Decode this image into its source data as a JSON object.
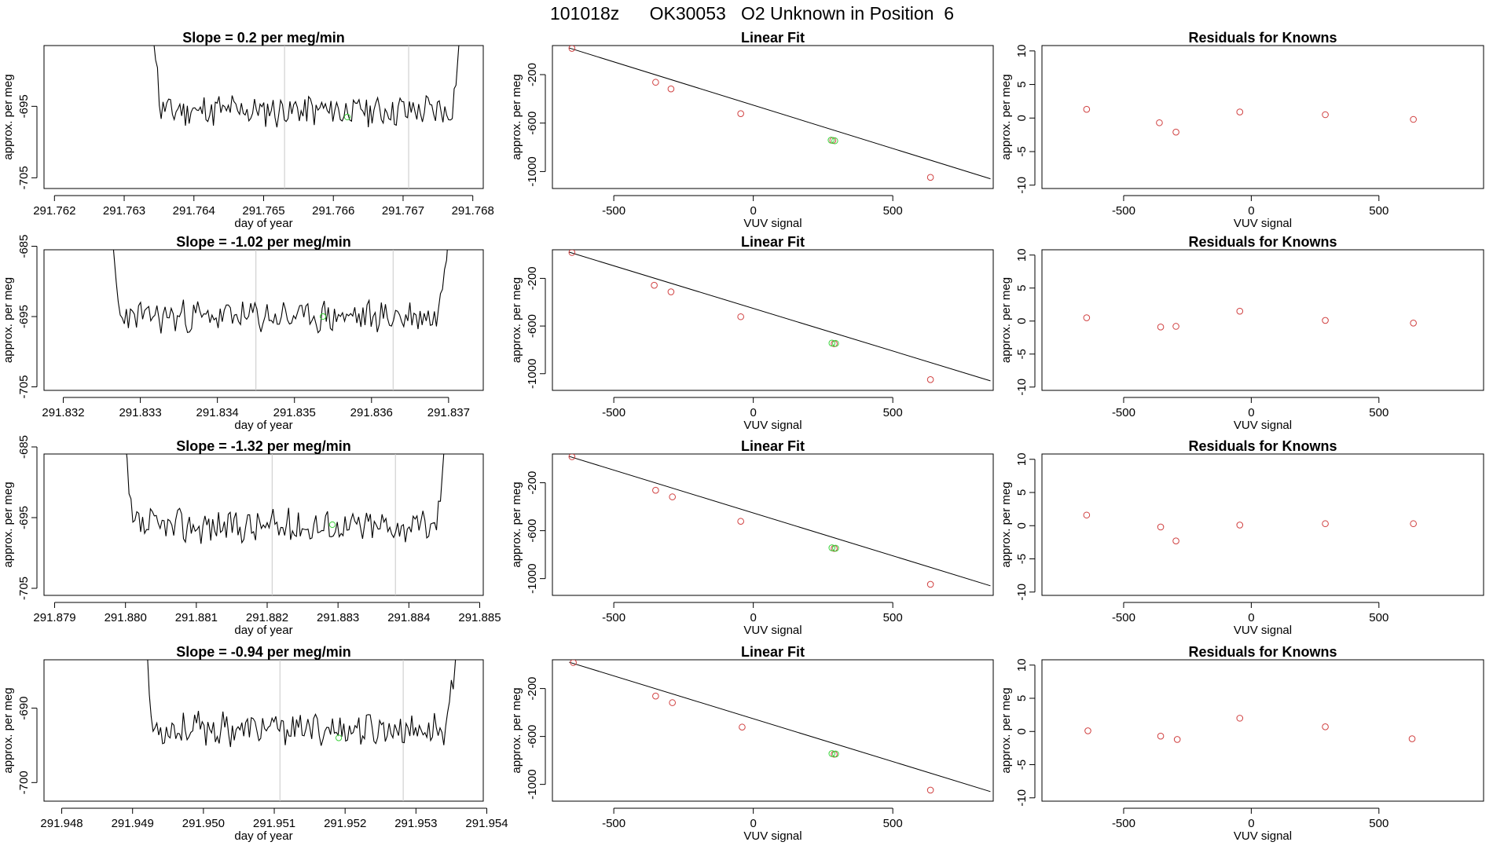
{
  "figure": {
    "title": "101018z      OK30053   O2 Unknown in Position  6",
    "colors": {
      "line": "#000000",
      "known_points": "#d04040",
      "unknown_points": "#3ad23a",
      "guide_lines": "#c8c8c8",
      "frame": "#000000"
    }
  },
  "chart_data": [
    {
      "type": "line",
      "id": "time-series-row-1",
      "title": "Slope =  0.2  per meg/min",
      "xlabel": "day of year",
      "ylabel": "approx. per meg",
      "x_range": [
        291.76185,
        291.76815
      ],
      "ylim": [
        -706.5,
        -686.5
      ],
      "x_ticks": [
        {
          "value": 291.762,
          "label": "291.762"
        },
        {
          "value": 291.763,
          "label": "291.763"
        },
        {
          "value": 291.764,
          "label": "291.764"
        },
        {
          "value": 291.765,
          "label": "291.765"
        },
        {
          "value": 291.766,
          "label": "291.766"
        },
        {
          "value": 291.767,
          "label": "291.767"
        },
        {
          "value": 291.768,
          "label": "291.768"
        }
      ],
      "y_ticks": [
        {
          "value": -695,
          "label": "-695"
        },
        {
          "value": -705,
          "label": "-705"
        }
      ],
      "window_start": 291.76337,
      "window_end": 291.76792,
      "baseline": -695.6,
      "amplitude": 2.0,
      "seed": 11,
      "vlines": [
        291.7653,
        291.76708
      ],
      "unknown_point": {
        "x": 291.7662,
        "y": -696.5
      }
    },
    {
      "type": "line",
      "id": "time-series-row-2",
      "title": "Slope =  -1.02  per meg/min",
      "xlabel": "day of year",
      "ylabel": "approx. per meg",
      "x_range": [
        291.83175,
        291.83745
      ],
      "ylim": [
        -705.5,
        -685.5
      ],
      "x_ticks": [
        {
          "value": 291.832,
          "label": "291.832"
        },
        {
          "value": 291.833,
          "label": "291.833"
        },
        {
          "value": 291.834,
          "label": "291.834"
        },
        {
          "value": 291.835,
          "label": "291.835"
        },
        {
          "value": 291.836,
          "label": "291.836"
        },
        {
          "value": 291.837,
          "label": "291.837"
        }
      ],
      "y_ticks": [
        {
          "value": -685,
          "label": "-685"
        },
        {
          "value": -695,
          "label": "-695"
        },
        {
          "value": -705,
          "label": "-705"
        }
      ],
      "window_start": 291.83258,
      "window_end": 291.83708,
      "baseline": -695.0,
      "amplitude": 2.0,
      "seed": 23,
      "vlines": [
        291.8345,
        291.83628
      ],
      "unknown_point": {
        "x": 291.83537,
        "y": -695.0
      }
    },
    {
      "type": "line",
      "id": "time-series-row-3",
      "title": "Slope =  -1.32  per meg/min",
      "xlabel": "day of year",
      "ylabel": "approx. per meg",
      "x_range": [
        291.87885,
        291.88505
      ],
      "ylim": [
        -706.0,
        -686.0
      ],
      "x_ticks": [
        {
          "value": 291.879,
          "label": "291.879"
        },
        {
          "value": 291.88,
          "label": "291.880"
        },
        {
          "value": 291.881,
          "label": "291.881"
        },
        {
          "value": 291.882,
          "label": "291.882"
        },
        {
          "value": 291.883,
          "label": "291.883"
        },
        {
          "value": 291.884,
          "label": "291.884"
        },
        {
          "value": 291.885,
          "label": "291.885"
        }
      ],
      "y_ticks": [
        {
          "value": -685,
          "label": "-685"
        },
        {
          "value": -695,
          "label": "-695"
        },
        {
          "value": -705,
          "label": "-705"
        }
      ],
      "window_start": 291.87994,
      "window_end": 291.88461,
      "baseline": -696.2,
      "amplitude": 2.1,
      "seed": 37,
      "vlines": [
        291.88207,
        291.88381
      ],
      "unknown_point": {
        "x": 291.88292,
        "y": -696.0
      }
    },
    {
      "type": "line",
      "id": "time-series-row-4",
      "title": "Slope =  -0.94  per meg/min",
      "xlabel": "day of year",
      "ylabel": "approx. per meg",
      "x_range": [
        291.94775,
        291.95395
      ],
      "ylim": [
        -702.5,
        -683.5
      ],
      "x_ticks": [
        {
          "value": 291.948,
          "label": "291.948"
        },
        {
          "value": 291.949,
          "label": "291.949"
        },
        {
          "value": 291.95,
          "label": "291.950"
        },
        {
          "value": 291.951,
          "label": "291.951"
        },
        {
          "value": 291.952,
          "label": "291.952"
        },
        {
          "value": 291.953,
          "label": "291.953"
        },
        {
          "value": 291.954,
          "label": "291.954"
        }
      ],
      "y_ticks": [
        {
          "value": -690,
          "label": "-690"
        },
        {
          "value": -700,
          "label": "-700"
        }
      ],
      "window_start": 291.94913,
      "window_end": 291.95366,
      "baseline": -692.8,
      "amplitude": 1.9,
      "seed": 53,
      "vlines": [
        291.95108,
        291.95282
      ],
      "unknown_point": {
        "x": 291.95191,
        "y": -694.0
      }
    },
    {
      "type": "scatter",
      "id": "linear-fit-row-1",
      "title": "Linear Fit",
      "xlabel": "VUV signal",
      "ylabel": "approx. per meg",
      "xlim": [
        -720,
        860
      ],
      "ylim": [
        -1140,
        40
      ],
      "x_ticks": [
        {
          "value": -500,
          "label": "-500"
        },
        {
          "value": 0,
          "label": "0"
        },
        {
          "value": 500,
          "label": "500"
        }
      ],
      "y_ticks": [
        {
          "value": -200,
          "label": "-200"
        },
        {
          "value": -600,
          "label": "-600"
        },
        {
          "value": -1000,
          "label": "-1000"
        }
      ],
      "fit_line": {
        "x": [
          -660,
          850
        ],
        "y": [
          20,
          -1060
        ]
      },
      "knowns": {
        "x": [
          -650,
          -350,
          -295,
          -45,
          285,
          635
        ],
        "y": [
          17,
          -263,
          -318,
          -522,
          -743,
          -1048
        ]
      },
      "unknowns": {
        "x": [
          279,
          292
        ],
        "y": [
          -741,
          -746
        ]
      }
    },
    {
      "type": "scatter",
      "id": "linear-fit-row-2",
      "title": "Linear Fit",
      "xlabel": "VUV signal",
      "ylabel": "approx. per meg",
      "xlim": [
        -720,
        860
      ],
      "ylim": [
        -1140,
        40
      ],
      "x_ticks": [
        {
          "value": -500,
          "label": "-500"
        },
        {
          "value": 0,
          "label": "0"
        },
        {
          "value": 500,
          "label": "500"
        }
      ],
      "y_ticks": [
        {
          "value": -200,
          "label": "-200"
        },
        {
          "value": -600,
          "label": "-600"
        },
        {
          "value": -1000,
          "label": "-1000"
        }
      ],
      "fit_line": {
        "x": [
          -660,
          850
        ],
        "y": [
          20,
          -1060
        ]
      },
      "knowns": {
        "x": [
          -650,
          -355,
          -295,
          -45,
          290,
          635
        ],
        "y": [
          17,
          -258,
          -313,
          -522,
          -748,
          -1050
        ]
      },
      "unknowns": {
        "x": [
          282,
          295
        ],
        "y": [
          -743,
          -746
        ]
      }
    },
    {
      "type": "scatter",
      "id": "linear-fit-row-3",
      "title": "Linear Fit",
      "xlabel": "VUV signal",
      "ylabel": "approx. per meg",
      "xlim": [
        -720,
        860
      ],
      "ylim": [
        -1140,
        40
      ],
      "x_ticks": [
        {
          "value": -500,
          "label": "-500"
        },
        {
          "value": 0,
          "label": "0"
        },
        {
          "value": 500,
          "label": "500"
        }
      ],
      "y_ticks": [
        {
          "value": -200,
          "label": "-200"
        },
        {
          "value": -600,
          "label": "-600"
        },
        {
          "value": -1000,
          "label": "-1000"
        }
      ],
      "fit_line": {
        "x": [
          -660,
          850
        ],
        "y": [
          20,
          -1060
        ]
      },
      "knowns": {
        "x": [
          -650,
          -350,
          -290,
          -45,
          290,
          635
        ],
        "y": [
          17,
          -263,
          -318,
          -522,
          -748,
          -1048
        ]
      },
      "unknowns": {
        "x": [
          282,
          295
        ],
        "y": [
          -743,
          -746
        ]
      }
    },
    {
      "type": "scatter",
      "id": "linear-fit-row-4",
      "title": "Linear Fit",
      "xlabel": "VUV signal",
      "ylabel": "approx. per meg",
      "xlim": [
        -720,
        860
      ],
      "ylim": [
        -1140,
        40
      ],
      "x_ticks": [
        {
          "value": -500,
          "label": "-500"
        },
        {
          "value": 0,
          "label": "0"
        },
        {
          "value": 500,
          "label": "500"
        }
      ],
      "y_ticks": [
        {
          "value": -200,
          "label": "-200"
        },
        {
          "value": -600,
          "label": "-600"
        },
        {
          "value": -1000,
          "label": "-1000"
        }
      ],
      "fit_line": {
        "x": [
          -660,
          850
        ],
        "y": [
          20,
          -1060
        ]
      },
      "knowns": {
        "x": [
          -645,
          -350,
          -290,
          -40,
          290,
          635
        ],
        "y": [
          17,
          -263,
          -318,
          -522,
          -748,
          -1048
        ]
      },
      "unknowns": {
        "x": [
          282,
          295
        ],
        "y": [
          -743,
          -746
        ]
      }
    },
    {
      "type": "scatter",
      "id": "residuals-row-1",
      "title": "Residuals for Knowns",
      "xlabel": "VUV signal",
      "ylabel": "approx. per meg",
      "xlim": [
        -820,
        910
      ],
      "ylim": [
        -10.5,
        10.8
      ],
      "x_ticks": [
        {
          "value": -500,
          "label": "-500"
        },
        {
          "value": 0,
          "label": "0"
        },
        {
          "value": 500,
          "label": "500"
        }
      ],
      "y_ticks": [
        {
          "value": 10,
          "label": "10"
        },
        {
          "value": 5,
          "label": "5"
        },
        {
          "value": 0,
          "label": "0"
        },
        {
          "value": -5,
          "label": "-5"
        },
        {
          "value": -10,
          "label": "-10"
        }
      ],
      "residuals": {
        "x": [
          -645,
          -360,
          -295,
          -45,
          290,
          635
        ],
        "y": [
          1.3,
          -0.7,
          -2.1,
          0.9,
          0.5,
          -0.2
        ]
      }
    },
    {
      "type": "scatter",
      "id": "residuals-row-2",
      "title": "Residuals for Knowns",
      "xlabel": "VUV signal",
      "ylabel": "approx. per meg",
      "xlim": [
        -820,
        910
      ],
      "ylim": [
        -10.5,
        10.8
      ],
      "x_ticks": [
        {
          "value": -500,
          "label": "-500"
        },
        {
          "value": 0,
          "label": "0"
        },
        {
          "value": 500,
          "label": "500"
        }
      ],
      "y_ticks": [
        {
          "value": 10,
          "label": "10"
        },
        {
          "value": 5,
          "label": "5"
        },
        {
          "value": 0,
          "label": "0"
        },
        {
          "value": -5,
          "label": "-5"
        },
        {
          "value": -10,
          "label": "-10"
        }
      ],
      "residuals": {
        "x": [
          -645,
          -355,
          -295,
          -45,
          290,
          635
        ],
        "y": [
          0.5,
          -0.9,
          -0.8,
          1.5,
          0.1,
          -0.3
        ]
      }
    },
    {
      "type": "scatter",
      "id": "residuals-row-3",
      "title": "Residuals for Knowns",
      "xlabel": "VUV signal",
      "ylabel": "approx. per meg",
      "xlim": [
        -820,
        910
      ],
      "ylim": [
        -10.5,
        10.8
      ],
      "x_ticks": [
        {
          "value": -500,
          "label": "-500"
        },
        {
          "value": 0,
          "label": "0"
        },
        {
          "value": 500,
          "label": "500"
        }
      ],
      "y_ticks": [
        {
          "value": 10,
          "label": "10"
        },
        {
          "value": 5,
          "label": "5"
        },
        {
          "value": 0,
          "label": "0"
        },
        {
          "value": -5,
          "label": "-5"
        },
        {
          "value": -10,
          "label": "-10"
        }
      ],
      "residuals": {
        "x": [
          -645,
          -355,
          -295,
          -45,
          290,
          635
        ],
        "y": [
          1.6,
          -0.2,
          -2.3,
          0.1,
          0.3,
          0.3
        ]
      }
    },
    {
      "type": "scatter",
      "id": "residuals-row-4",
      "title": "Residuals for Knowns",
      "xlabel": "VUV signal",
      "ylabel": "approx. per meg",
      "xlim": [
        -820,
        910
      ],
      "ylim": [
        -10.5,
        10.8
      ],
      "x_ticks": [
        {
          "value": -500,
          "label": "-500"
        },
        {
          "value": 0,
          "label": "0"
        },
        {
          "value": 500,
          "label": "500"
        }
      ],
      "y_ticks": [
        {
          "value": 10,
          "label": "10"
        },
        {
          "value": 5,
          "label": "5"
        },
        {
          "value": 0,
          "label": "0"
        },
        {
          "value": -5,
          "label": "-5"
        },
        {
          "value": -10,
          "label": "-10"
        }
      ],
      "residuals": {
        "x": [
          -640,
          -355,
          -290,
          -45,
          290,
          630
        ],
        "y": [
          0.1,
          -0.7,
          -1.2,
          2.0,
          0.7,
          -1.1
        ]
      }
    }
  ]
}
